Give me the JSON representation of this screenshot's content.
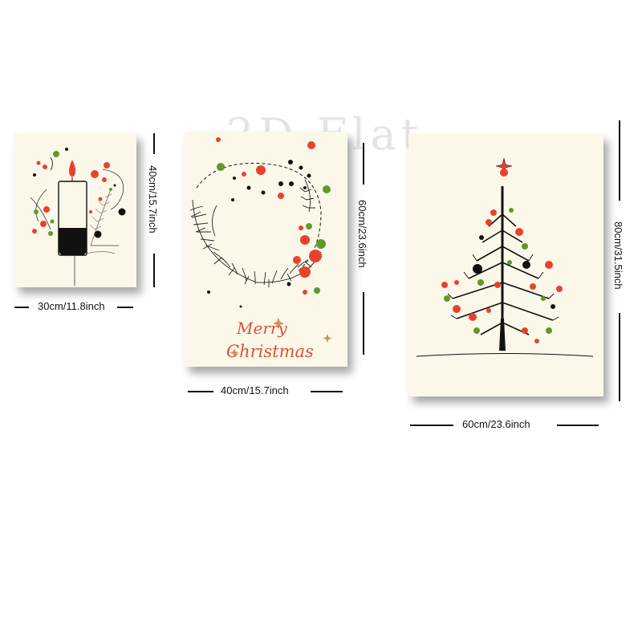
{
  "watermark": "2D Flat",
  "panels": {
    "small": {
      "width_label": "30cm/11.8inch",
      "height_label": "40cm/15.7inch"
    },
    "medium": {
      "width_label": "40cm/15.7inch",
      "height_label": "60cm/23.6inch",
      "greeting_line1": "Merry",
      "greeting_line2": "Christmas"
    },
    "large": {
      "width_label": "60cm/23.6inch",
      "height_label": "80cm/31.5inch"
    }
  },
  "colors": {
    "red": "#e8422f",
    "green": "#5e9a2b",
    "black": "#111111",
    "paper": "#fbf8ea",
    "greeting": "#d9523a"
  }
}
